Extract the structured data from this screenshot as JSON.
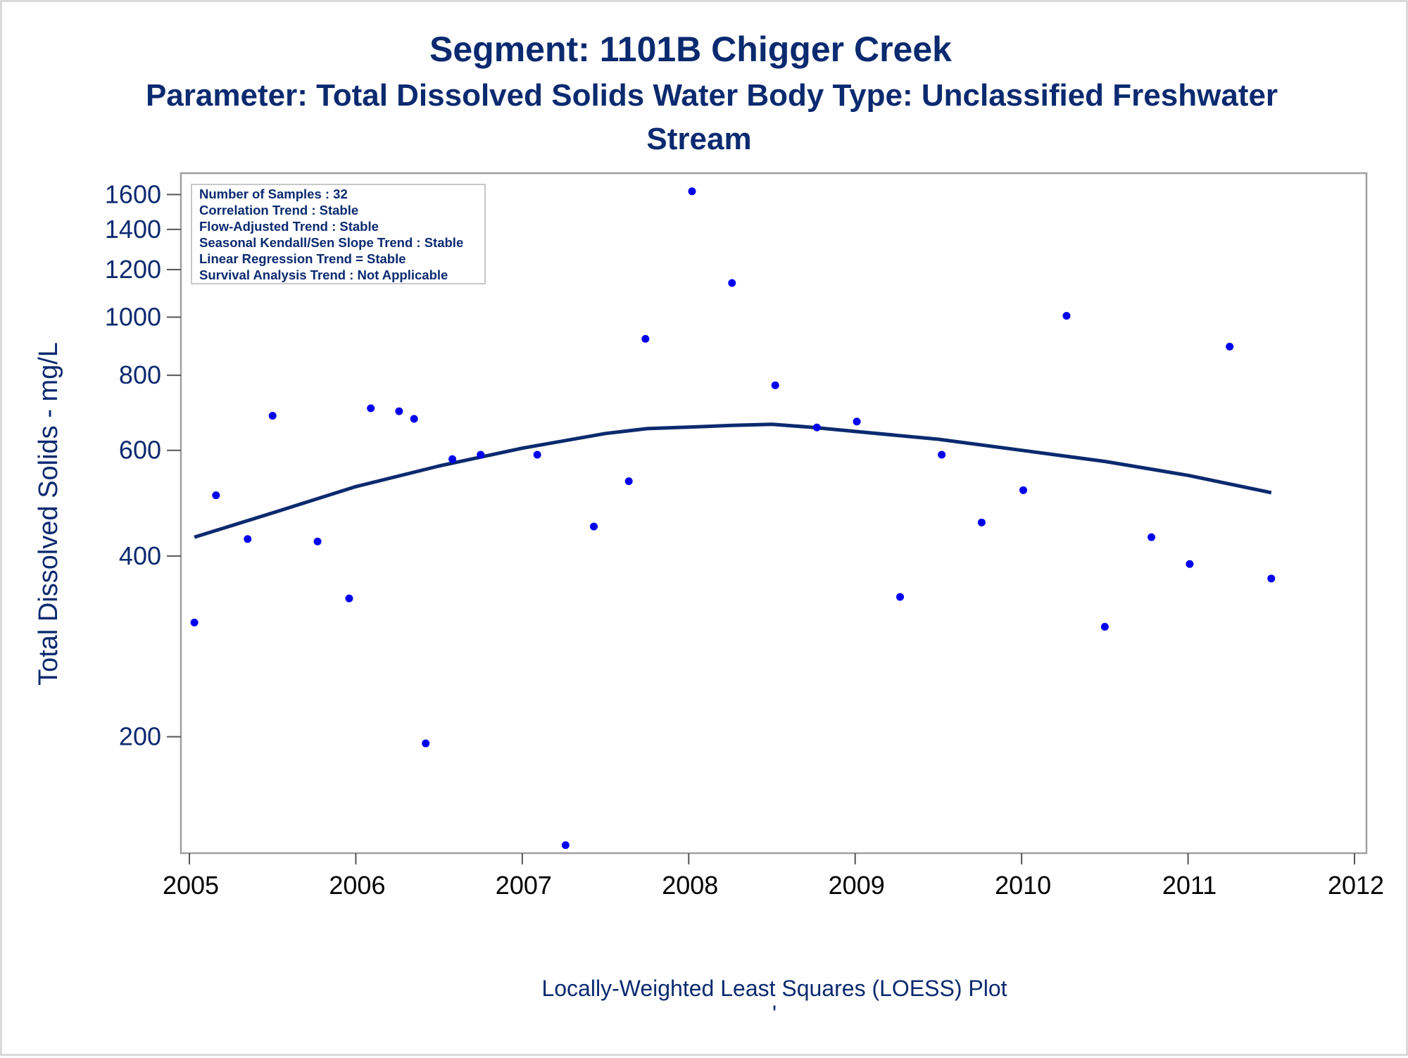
{
  "chart_data": {
    "type": "scatter",
    "title": "Segment: 1101B  Chigger Creek",
    "subtitle_lines": [
      "Parameter: Total Dissolved Solids   Water Body Type: Unclassified Freshwater",
      "Stream"
    ],
    "ylabel": "Total Dissolved Solids - mg/L",
    "footnote": "Locally-Weighted Least Squares (LOESS) Plot",
    "footnote_mark": "'",
    "y_scale": "log",
    "ylim": [
      128,
      1650
    ],
    "xlim": [
      2005,
      2012
    ],
    "y_ticks": [
      200,
      400,
      600,
      800,
      1000,
      1200,
      1400,
      1600
    ],
    "x_ticks": [
      2005,
      2006,
      2007,
      2008,
      2009,
      2010,
      2011,
      2012
    ],
    "grid": false,
    "legend": "none",
    "stats_box": [
      "Number of Samples : 32",
      "Correlation Trend : Stable",
      "Flow-Adjusted Trend : Stable",
      "Seasonal Kendall/Sen Slope Trend : Stable",
      "Linear Regression Trend = Stable",
      "Survival Analysis Trend : Not Applicable"
    ],
    "points": [
      {
        "x": 2005.03,
        "y": 310
      },
      {
        "x": 2005.16,
        "y": 505
      },
      {
        "x": 2005.35,
        "y": 427
      },
      {
        "x": 2005.5,
        "y": 685
      },
      {
        "x": 2005.77,
        "y": 423
      },
      {
        "x": 2005.96,
        "y": 340
      },
      {
        "x": 2006.09,
        "y": 705
      },
      {
        "x": 2006.26,
        "y": 697
      },
      {
        "x": 2006.35,
        "y": 677
      },
      {
        "x": 2006.42,
        "y": 195
      },
      {
        "x": 2006.58,
        "y": 580
      },
      {
        "x": 2006.75,
        "y": 590
      },
      {
        "x": 2007.09,
        "y": 590
      },
      {
        "x": 2007.26,
        "y": 132
      },
      {
        "x": 2007.43,
        "y": 448
      },
      {
        "x": 2007.64,
        "y": 533
      },
      {
        "x": 2007.74,
        "y": 920
      },
      {
        "x": 2008.02,
        "y": 1620
      },
      {
        "x": 2008.26,
        "y": 1140
      },
      {
        "x": 2008.52,
        "y": 770
      },
      {
        "x": 2008.77,
        "y": 655
      },
      {
        "x": 2009.01,
        "y": 670
      },
      {
        "x": 2009.27,
        "y": 342
      },
      {
        "x": 2009.52,
        "y": 590
      },
      {
        "x": 2009.76,
        "y": 455
      },
      {
        "x": 2010.01,
        "y": 515
      },
      {
        "x": 2010.27,
        "y": 1005
      },
      {
        "x": 2010.5,
        "y": 305
      },
      {
        "x": 2010.78,
        "y": 430
      },
      {
        "x": 2011.01,
        "y": 388
      },
      {
        "x": 2011.25,
        "y": 893
      },
      {
        "x": 2011.5,
        "y": 367
      }
    ],
    "loess_line": [
      {
        "x": 2005.03,
        "y": 430
      },
      {
        "x": 2005.5,
        "y": 472
      },
      {
        "x": 2006.0,
        "y": 522
      },
      {
        "x": 2006.5,
        "y": 565
      },
      {
        "x": 2007.0,
        "y": 605
      },
      {
        "x": 2007.5,
        "y": 640
      },
      {
        "x": 2007.75,
        "y": 652
      },
      {
        "x": 2008.0,
        "y": 656
      },
      {
        "x": 2008.25,
        "y": 660
      },
      {
        "x": 2008.5,
        "y": 663
      },
      {
        "x": 2008.75,
        "y": 655
      },
      {
        "x": 2009.0,
        "y": 645
      },
      {
        "x": 2009.5,
        "y": 626
      },
      {
        "x": 2010.0,
        "y": 600
      },
      {
        "x": 2010.5,
        "y": 575
      },
      {
        "x": 2011.0,
        "y": 545
      },
      {
        "x": 2011.5,
        "y": 510
      }
    ],
    "colors": {
      "title": "#0b2a6f",
      "points": "#0000ee",
      "line": "#0b2a6f",
      "frame": "#a0a0a0"
    }
  }
}
